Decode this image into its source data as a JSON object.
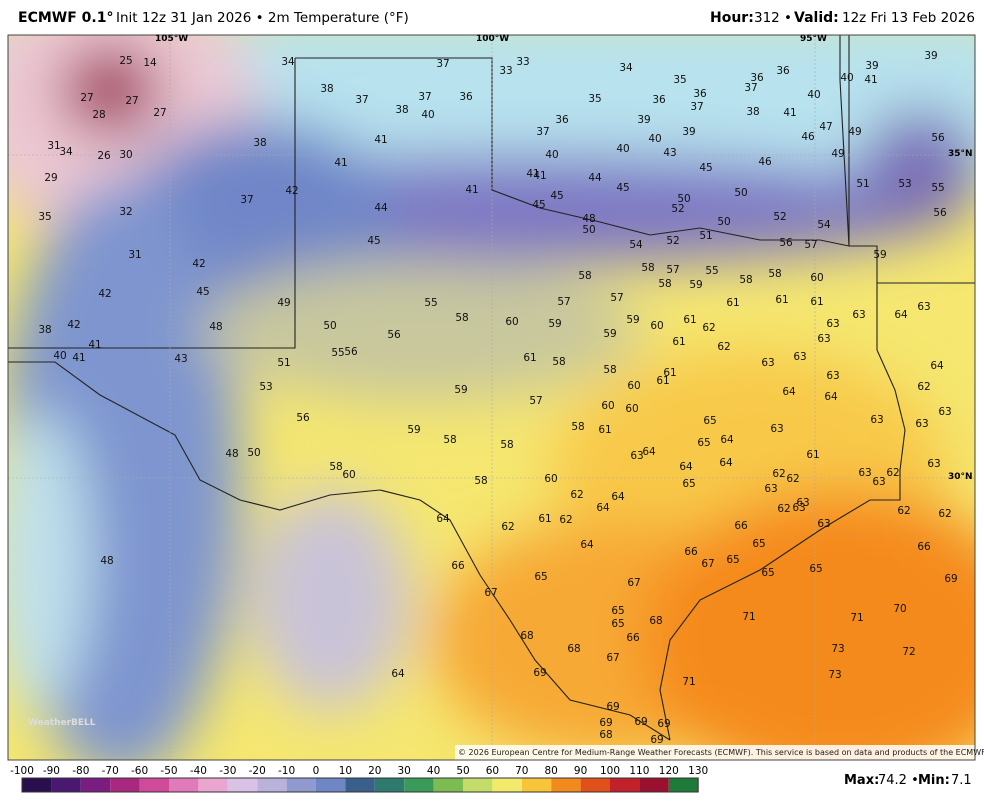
{
  "header": {
    "title": "ECMWF 0.1°",
    "subtitle": "Init 12z 31 Jan 2026 • 2m Temperature (°F)",
    "hour_label": "Hour:",
    "hour": "312 •",
    "valid_label": "Valid:",
    "valid": "12z Fri 13 Feb 2026"
  },
  "map": {
    "graticule": [
      "105°W",
      "100°W",
      "95°W",
      "35°N",
      "30°N"
    ],
    "labels": [
      25,
      14,
      34,
      37,
      33,
      33,
      34,
      35,
      36,
      36,
      37,
      39,
      39,
      40,
      41,
      27,
      27,
      28,
      27,
      38,
      37,
      37,
      36,
      38,
      40,
      35,
      36,
      36,
      37,
      38,
      41,
      40,
      38,
      41,
      37,
      36,
      39,
      40,
      39,
      40,
      43,
      47,
      46,
      49,
      56,
      49,
      31,
      34,
      26,
      30,
      29,
      41,
      40,
      41,
      41,
      44,
      45,
      46,
      51,
      53,
      55,
      42,
      41,
      37,
      32,
      35,
      44,
      45,
      45,
      45,
      50,
      52,
      50,
      56,
      45,
      48,
      50,
      50,
      51,
      52,
      54,
      52,
      54,
      56,
      57,
      59,
      31,
      42,
      42,
      45,
      48,
      49,
      58,
      58,
      57,
      55,
      58,
      59,
      58,
      58,
      60,
      38,
      42,
      41,
      40,
      41,
      43,
      50,
      55,
      58,
      56,
      60,
      57,
      57,
      59,
      59,
      59,
      60,
      61,
      62,
      61,
      61,
      61,
      63,
      63,
      64,
      63,
      51,
      55,
      56,
      53,
      61,
      58,
      58,
      60,
      61,
      61,
      61,
      62,
      63,
      63,
      63,
      63,
      64,
      59,
      57,
      56,
      60,
      60,
      64,
      64,
      62,
      63,
      59,
      58,
      58,
      58,
      61,
      65,
      65,
      64,
      63,
      63,
      63,
      48,
      50,
      63,
      64,
      64,
      64,
      61,
      63,
      58,
      60,
      58,
      60,
      65,
      62,
      62,
      63,
      63,
      62,
      62,
      64,
      64,
      63,
      63,
      62,
      63,
      64,
      62,
      61,
      62,
      66,
      63,
      62,
      62,
      64,
      65,
      66,
      66,
      67,
      65,
      48,
      66,
      65,
      65,
      65,
      69,
      67,
      67,
      65,
      65,
      68,
      71,
      71,
      70,
      68,
      66,
      68,
      67,
      73,
      72,
      64,
      69,
      71,
      73,
      69,
      69,
      69,
      69,
      68,
      69
    ],
    "logo": "WeatherBELL",
    "copyright": "© 2026 European Centre for Medium-Range Weather Forecasts (ECMWF). This service is based on data and products of the ECMWF."
  },
  "colorbar": {
    "ticks": [
      -100,
      -90,
      -80,
      -70,
      -60,
      -50,
      -40,
      -30,
      -20,
      -10,
      0,
      10,
      20,
      30,
      40,
      50,
      60,
      70,
      80,
      90,
      100,
      110,
      120,
      130
    ]
  },
  "footer": {
    "max_label": "Max:",
    "max": "74.2 •",
    "min_label": "Min:",
    "min": "7.1"
  }
}
